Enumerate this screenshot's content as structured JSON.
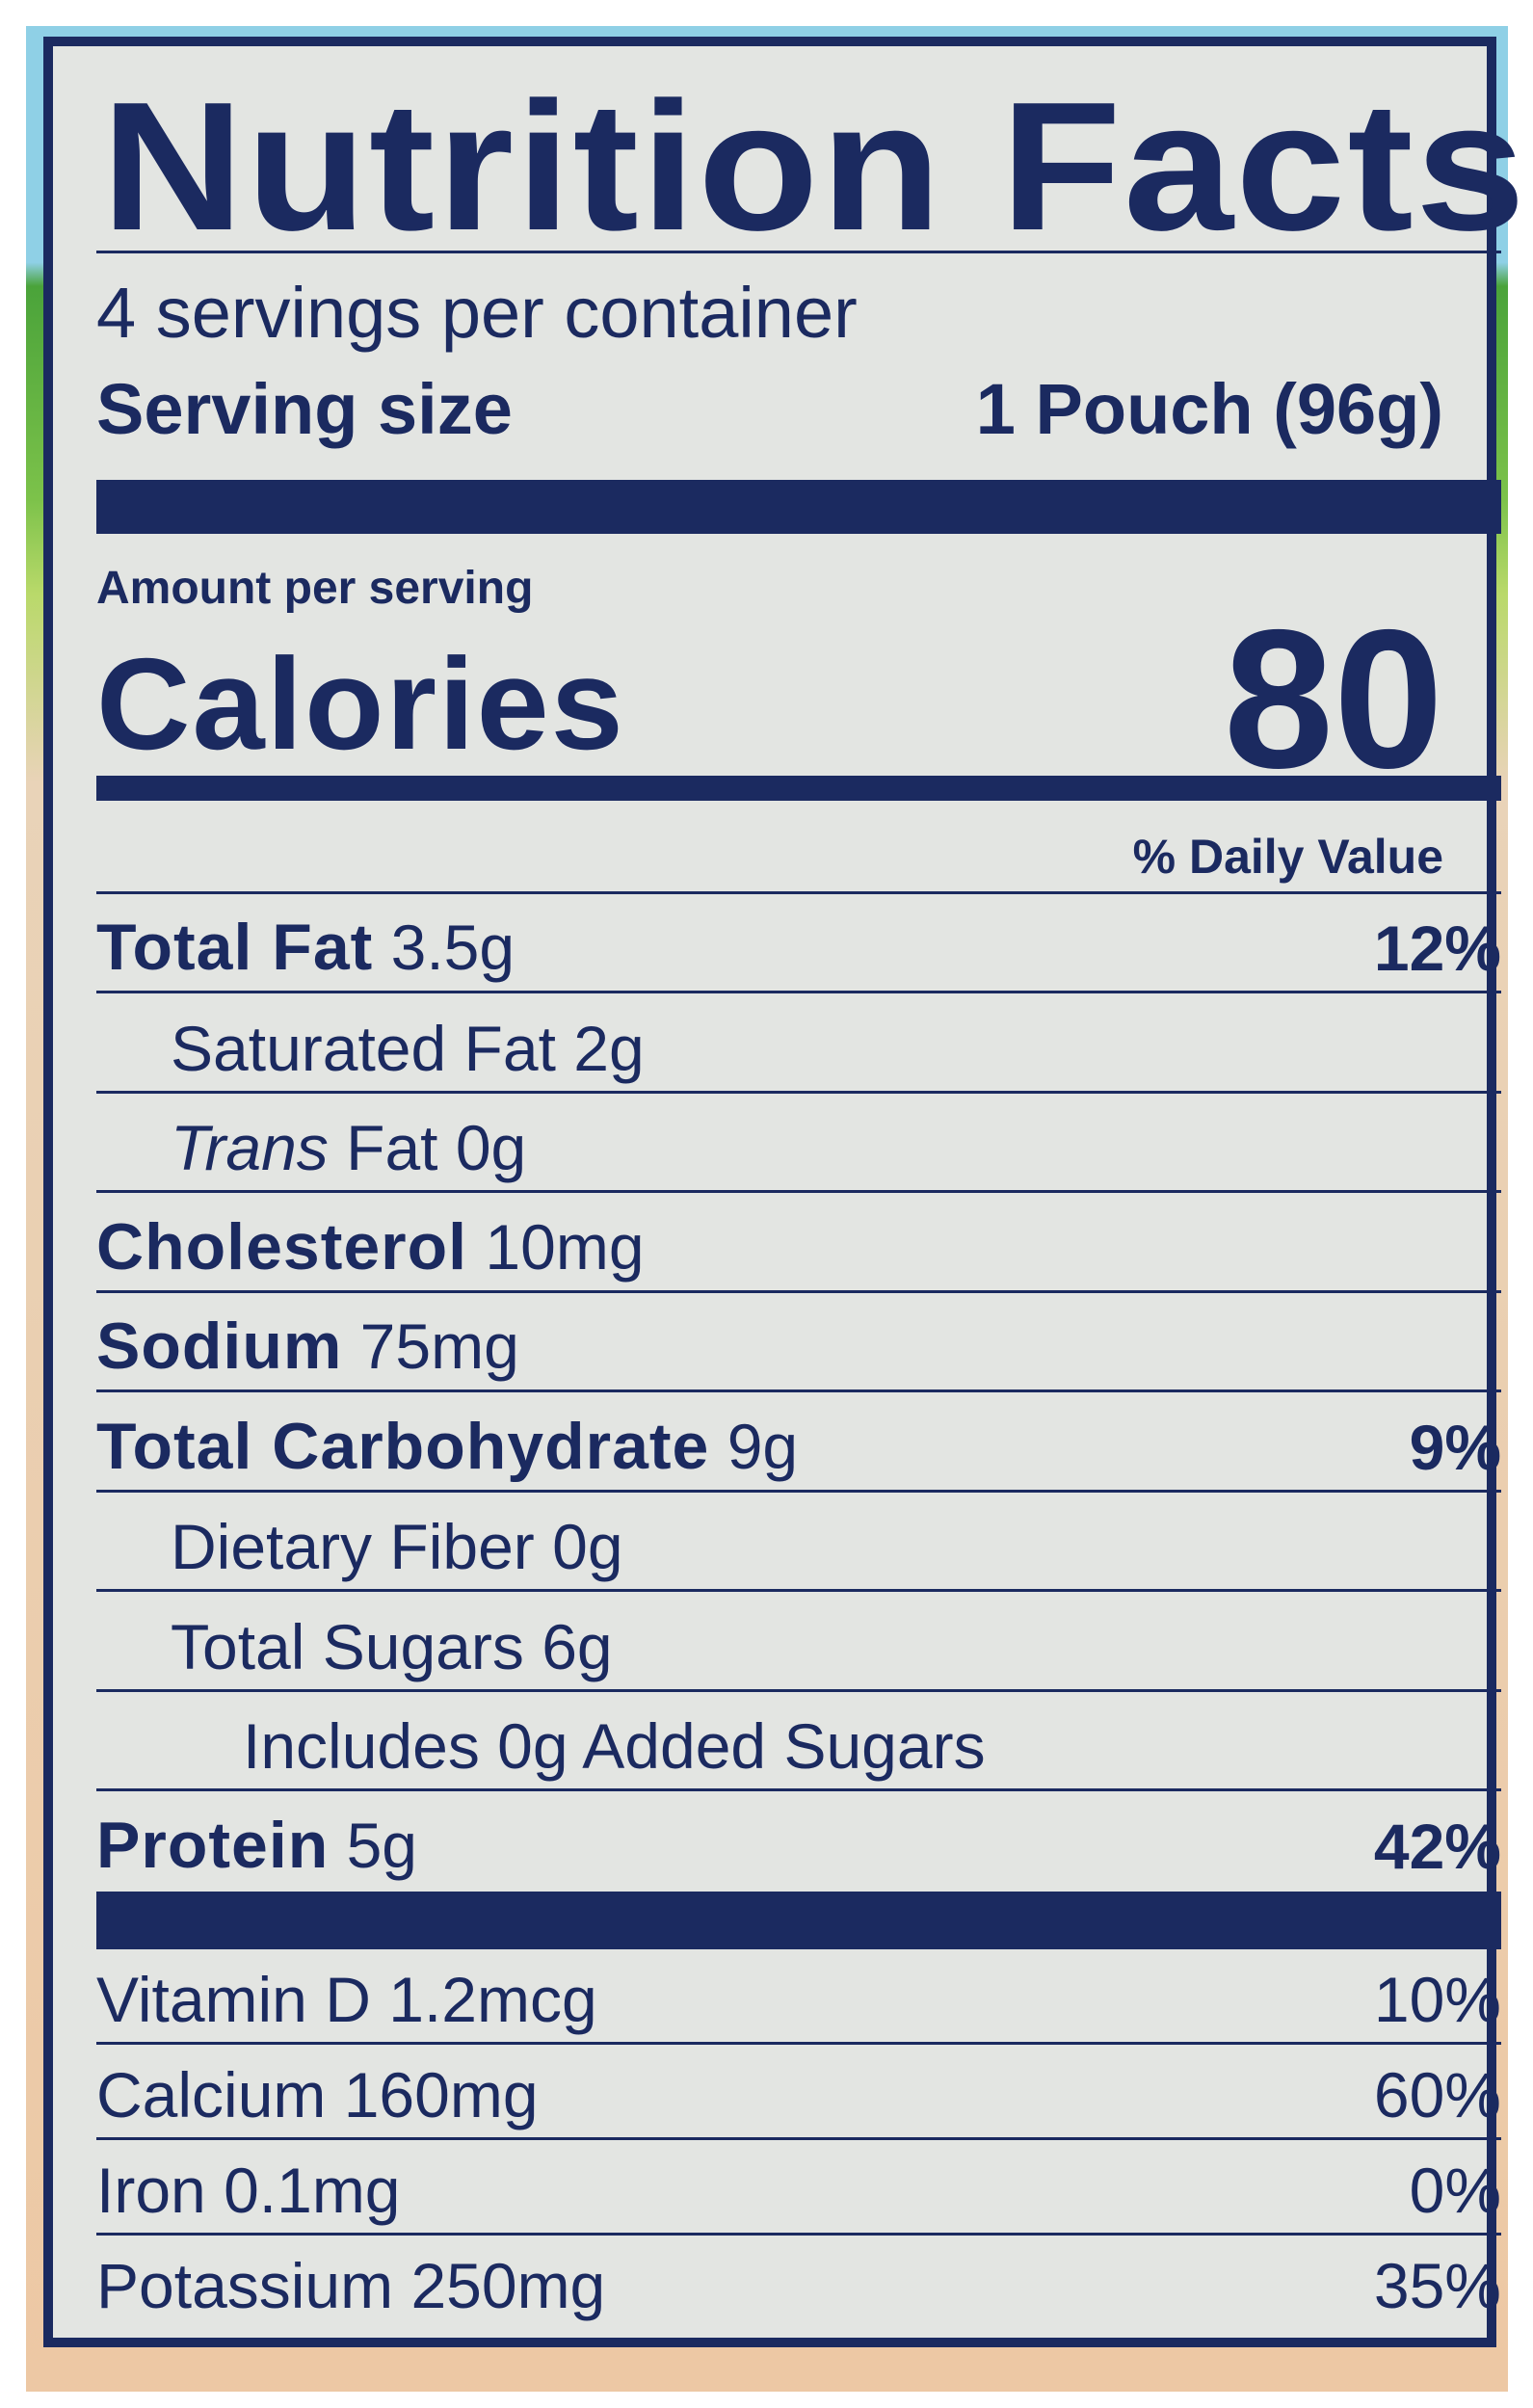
{
  "title": "Nutrition Facts",
  "servings_per_container": "4 servings per container",
  "serving_size_label": "Serving size",
  "serving_size_value": "1 Pouch (96g)",
  "amount_per_serving": "Amount per serving",
  "calories_label": "Calories",
  "calories_value": "80",
  "daily_value_header": "% Daily Value",
  "nutrients": [
    {
      "name": "Total Fat",
      "amount": "3.5g",
      "dv": "12%",
      "bold": true,
      "indent": 0
    },
    {
      "name": "Saturated Fat",
      "amount": "2g",
      "dv": "",
      "bold": false,
      "indent": 1
    },
    {
      "name": "Trans",
      "amount": "Fat 0g",
      "dv": "",
      "bold": false,
      "indent": 1
    },
    {
      "name": "Cholesterol",
      "amount": "10mg",
      "dv": "",
      "bold": true,
      "indent": 0
    },
    {
      "name": "Sodium",
      "amount": "75mg",
      "dv": "",
      "bold": true,
      "indent": 0
    },
    {
      "name": "Total Carbohydrate",
      "amount": "9g",
      "dv": "9%",
      "bold": true,
      "indent": 0
    },
    {
      "name": "Dietary Fiber",
      "amount": "0g",
      "dv": "",
      "bold": false,
      "indent": 1
    },
    {
      "name": "Total Sugars",
      "amount": "6g",
      "dv": "",
      "bold": false,
      "indent": 1
    },
    {
      "name": "Includes 0g Added Sugars",
      "amount": "",
      "dv": "",
      "bold": false,
      "indent": 2
    },
    {
      "name": "Protein",
      "amount": "5g",
      "dv": "42%",
      "bold": true,
      "indent": 0
    }
  ],
  "vitamins": [
    {
      "name": "Vitamin D 1.2mcg",
      "dv": "10%"
    },
    {
      "name": "Calcium 160mg",
      "dv": "60%"
    },
    {
      "name": "Iron 0.1mg",
      "dv": "0%"
    },
    {
      "name": "Potassium 250mg",
      "dv": "35%"
    }
  ]
}
